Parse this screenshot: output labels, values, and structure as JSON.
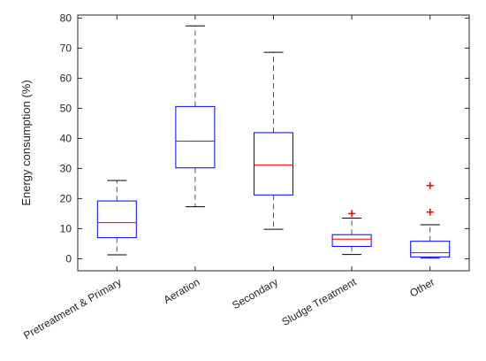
{
  "chart_data": {
    "type": "box",
    "title": "",
    "xlabel": "",
    "ylabel": "Energy consumption (%)",
    "ylim": [
      -4,
      81
    ],
    "yticks": [
      0,
      10,
      20,
      30,
      40,
      50,
      60,
      70,
      80
    ],
    "grid": false,
    "legend": "none",
    "colors": {
      "box": "#0000ff",
      "median": "#ff0000",
      "whisker": "#000000",
      "whisker_line": "#555555",
      "outlier": "#ff0000",
      "axis": "#262626"
    },
    "categories": [
      "Pretreatment & Primary",
      "Aeration",
      "Secondary",
      "Sludge Treatment",
      "Other"
    ],
    "boxes": [
      {
        "label": "Pretreatment & Primary",
        "whisker_low": 1.3,
        "q1": 7.0,
        "median": 12.0,
        "q3": 19.2,
        "whisker_high": 26.0,
        "outliers": []
      },
      {
        "label": "Aeration",
        "whisker_low": 17.3,
        "q1": 30.2,
        "median": 39.1,
        "q3": 50.6,
        "whisker_high": 77.4,
        "outliers": []
      },
      {
        "label": "Secondary",
        "whisker_low": 9.8,
        "q1": 21.2,
        "median": 31.2,
        "q3": 41.9,
        "whisker_high": 68.6,
        "outliers": []
      },
      {
        "label": "Sludge Treatment",
        "whisker_low": 1.4,
        "q1": 4.1,
        "median": 6.5,
        "q3": 8.0,
        "whisker_high": 13.5,
        "outliers": [
          15.0
        ]
      },
      {
        "label": "Other",
        "whisker_low": 0.2,
        "q1": 0.6,
        "median": 2.0,
        "q3": 5.8,
        "whisker_high": 11.3,
        "outliers": [
          15.5,
          24.3
        ]
      }
    ]
  }
}
